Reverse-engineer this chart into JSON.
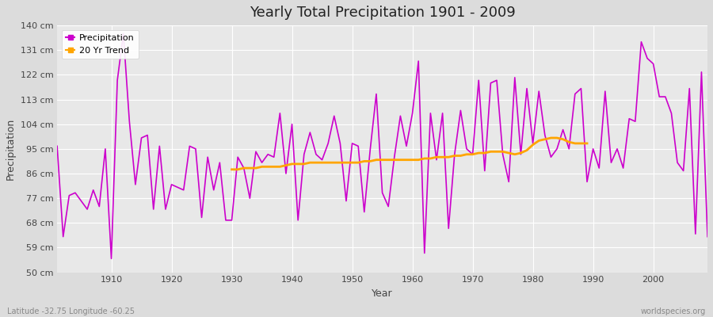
{
  "title": "Yearly Total Precipitation 1901 - 2009",
  "xlabel": "Year",
  "ylabel": "Precipitation",
  "bottom_left_label": "Latitude -32.75 Longitude -60.25",
  "bottom_right_label": "worldspecies.org",
  "precipitation_color": "#CC00CC",
  "trend_color": "#FFA500",
  "background_color": "#DCDCDC",
  "plot_bg_color": "#E8E8E8",
  "grid_color": "#FFFFFF",
  "ylim": [
    50,
    140
  ],
  "yticks": [
    50,
    59,
    68,
    77,
    86,
    95,
    104,
    113,
    122,
    131,
    140
  ],
  "ytick_labels": [
    "50 cm",
    "59 cm",
    "68 cm",
    "77 cm",
    "86 cm",
    "95 cm",
    "104 cm",
    "113 cm",
    "122 cm",
    "131 cm",
    "140 cm"
  ],
  "years": [
    1901,
    1902,
    1903,
    1904,
    1905,
    1906,
    1907,
    1908,
    1909,
    1910,
    1911,
    1912,
    1913,
    1914,
    1915,
    1916,
    1917,
    1918,
    1919,
    1920,
    1921,
    1922,
    1923,
    1924,
    1925,
    1926,
    1927,
    1928,
    1929,
    1930,
    1931,
    1932,
    1933,
    1934,
    1935,
    1936,
    1937,
    1938,
    1939,
    1940,
    1941,
    1942,
    1943,
    1944,
    1945,
    1946,
    1947,
    1948,
    1949,
    1950,
    1951,
    1952,
    1953,
    1954,
    1955,
    1956,
    1957,
    1958,
    1959,
    1960,
    1961,
    1962,
    1963,
    1964,
    1965,
    1966,
    1967,
    1968,
    1969,
    1970,
    1971,
    1972,
    1973,
    1974,
    1975,
    1976,
    1977,
    1978,
    1979,
    1980,
    1981,
    1982,
    1983,
    1984,
    1985,
    1986,
    1987,
    1988,
    1989,
    1990,
    1991,
    1992,
    1993,
    1994,
    1995,
    1996,
    1997,
    1998,
    1999,
    2000,
    2001,
    2002,
    2003,
    2004,
    2005,
    2006,
    2007,
    2008,
    2009
  ],
  "precipitation": [
    96,
    63,
    78,
    79,
    76,
    73,
    80,
    74,
    95,
    55,
    120,
    137,
    105,
    82,
    99,
    100,
    73,
    96,
    73,
    82,
    81,
    80,
    96,
    95,
    70,
    92,
    80,
    90,
    69,
    69,
    92,
    88,
    77,
    94,
    90,
    93,
    92,
    108,
    86,
    104,
    69,
    93,
    101,
    93,
    91,
    97,
    107,
    97,
    76,
    97,
    96,
    72,
    95,
    115,
    79,
    74,
    92,
    107,
    96,
    108,
    127,
    57,
    108,
    91,
    108,
    66,
    93,
    109,
    95,
    93,
    120,
    87,
    119,
    120,
    93,
    83,
    121,
    93,
    117,
    97,
    116,
    100,
    92,
    95,
    102,
    95,
    115,
    117,
    83,
    95,
    88,
    116,
    90,
    95,
    88,
    106,
    105,
    134,
    128,
    126,
    114,
    114,
    108,
    90,
    87,
    117,
    64,
    123,
    63
  ],
  "trend_years": [
    1930,
    1931,
    1932,
    1933,
    1934,
    1935,
    1936,
    1937,
    1938,
    1939,
    1940,
    1941,
    1942,
    1943,
    1944,
    1945,
    1946,
    1947,
    1948,
    1949,
    1950,
    1951,
    1952,
    1953,
    1954,
    1955,
    1956,
    1957,
    1958,
    1959,
    1960,
    1961,
    1962,
    1963,
    1964,
    1965,
    1966,
    1967,
    1968,
    1969,
    1970,
    1971,
    1972,
    1973,
    1974,
    1975,
    1976,
    1977,
    1978,
    1979,
    1980,
    1981,
    1982,
    1983,
    1984,
    1985,
    1986,
    1987,
    1988,
    1989
  ],
  "trend_values": [
    87.5,
    87.5,
    88,
    88,
    88,
    88.5,
    88.5,
    88.5,
    88.5,
    89,
    89.5,
    89.5,
    89.5,
    90,
    90,
    90,
    90,
    90,
    90,
    90,
    90,
    90,
    90.5,
    90.5,
    91,
    91,
    91,
    91,
    91,
    91,
    91,
    91,
    91.5,
    91.5,
    92,
    92,
    92,
    92.5,
    92.5,
    93,
    93,
    93.5,
    93.5,
    94,
    94,
    94,
    93.5,
    93,
    93.5,
    94.5,
    96.5,
    98,
    98.5,
    99,
    99,
    98.5,
    97.5,
    97,
    97,
    97
  ]
}
